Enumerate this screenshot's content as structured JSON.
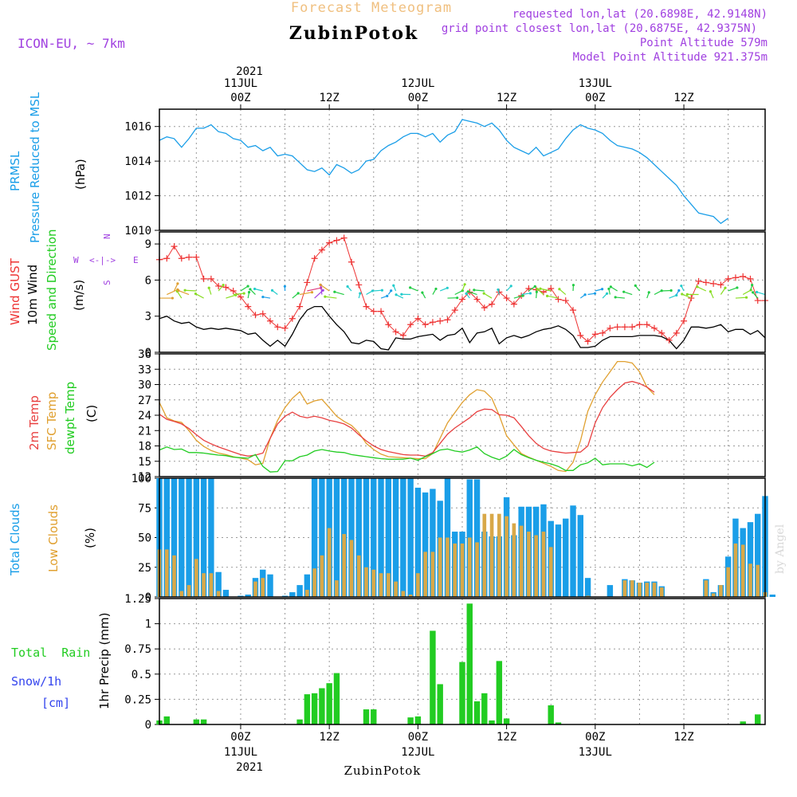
{
  "header": {
    "subtitle": "Forecast Meteogram",
    "title": "ZubinPotok",
    "model": "ICON-EU, ~ 7km",
    "requested": "requested lon,lat (20.6898E, 42.9148N)",
    "closest": "grid point closest lon,lat (20.6875E, 42.9375N)",
    "point_alt": "Point Altitude 579m",
    "model_alt": "Model Point Altitude 921.375m"
  },
  "footer": {
    "station": "ZubinPotok",
    "watermark": "by Angel"
  },
  "time_axis": {
    "top_year": "2021",
    "ticks": [
      {
        "h": 0,
        "label": "00Z",
        "date": "11JUL"
      },
      {
        "h": 12,
        "label": "12Z",
        "date": ""
      },
      {
        "h": 24,
        "label": "00Z",
        "date": "12JUL"
      },
      {
        "h": 36,
        "label": "12Z",
        "date": ""
      },
      {
        "h": 48,
        "label": "00Z",
        "date": "13JUL"
      },
      {
        "h": 60,
        "label": "12Z",
        "date": ""
      }
    ],
    "bottom_year": "2021"
  },
  "colors": {
    "pressure": "#1a9ee8",
    "gust": "#ee3333",
    "wind": "#000000",
    "t2m": "#e84040",
    "sfc": "#e0a030",
    "dew": "#22cc22",
    "total_cloud": "#1a9ee8",
    "low_cloud": "#d8a848",
    "rain": "#22cc22",
    "snow": "#3344ee",
    "header_purple": "#a040e0",
    "header_orange": "#f0c080"
  },
  "chart_data": [
    {
      "type": "line",
      "title": "PRMSL Pressure Reduced to MSL",
      "ylabel_1": "PRMSL",
      "ylabel_2": "Pressure Reduced to MSL",
      "unit": "(hPa)",
      "ylim": [
        1010,
        1017
      ],
      "yticks": [
        1010,
        1012,
        1014,
        1016
      ],
      "series": [
        {
          "name": "PRMSL",
          "start_hour": -11,
          "values": [
            1015.2,
            1015.4,
            1015.3,
            1014.8,
            1015.3,
            1015.9,
            1015.9,
            1016.1,
            1015.7,
            1015.6,
            1015.3,
            1015.2,
            1014.8,
            1014.9,
            1014.6,
            1014.8,
            1014.3,
            1014.4,
            1014.3,
            1013.9,
            1013.5,
            1013.4,
            1013.6,
            1013.2,
            1013.8,
            1013.6,
            1013.3,
            1013.5,
            1014.0,
            1014.1,
            1014.6,
            1014.9,
            1015.1,
            1015.4,
            1015.6,
            1015.6,
            1015.4,
            1015.6,
            1015.1,
            1015.5,
            1015.7,
            1016.4,
            1016.3,
            1016.2,
            1016.0,
            1016.2,
            1015.8,
            1015.2,
            1014.8,
            1014.6,
            1014.4,
            1014.8,
            1014.3,
            1014.5,
            1014.7,
            1015.3,
            1015.8,
            1016.1,
            1015.9,
            1015.8,
            1015.6,
            1015.2,
            1014.9,
            1014.8,
            1014.7,
            1014.5,
            1014.2,
            1013.8,
            1013.4,
            1013.0,
            1012.6,
            1012.0,
            1011.5,
            1011.0,
            1010.9,
            1010.8,
            1010.4,
            1010.7
          ]
        }
      ]
    },
    {
      "type": "line",
      "title": "Wind GUST / 10m Wind Speed and Direction",
      "ylabel_gust": "Wind GUST",
      "ylabel_wind": "10m Wind",
      "ylabel_dir": "Speed and Direction",
      "unit": "(m/s)",
      "compass": {
        "n": "N",
        "s": "S",
        "w": "W",
        "e": "E",
        "arrow": "<-|->"
      },
      "ylim": [
        0,
        10
      ],
      "yticks": [
        0,
        3,
        6,
        9
      ],
      "series": [
        {
          "name": "Wind GUST",
          "start_hour": -11,
          "values": [
            7.7,
            7.8,
            8.8,
            7.8,
            7.9,
            7.9,
            6.1,
            6.1,
            5.5,
            5.4,
            5.1,
            4.6,
            3.8,
            3.1,
            3.2,
            2.6,
            2.1,
            2.0,
            2.8,
            3.8,
            5.8,
            7.8,
            8.5,
            9.1,
            9.3,
            9.5,
            7.5,
            5.6,
            3.8,
            3.4,
            3.4,
            2.3,
            1.7,
            1.4,
            2.3,
            2.8,
            2.3,
            2.5,
            2.6,
            2.7,
            3.5,
            4.4,
            5.0,
            4.4,
            3.7,
            4.0,
            5.0,
            4.5,
            4.0,
            4.7,
            5.3,
            5.2,
            5.0,
            5.3,
            4.4,
            4.3,
            3.5,
            1.4,
            0.9,
            1.5,
            1.6,
            2.0,
            2.1,
            2.1,
            2.1,
            2.3,
            2.3,
            2.0,
            1.6,
            1.0,
            1.6,
            2.6,
            4.5,
            5.9,
            5.8,
            5.7,
            5.6,
            6.1,
            6.2,
            6.3,
            6.1,
            4.3,
            4.3
          ]
        },
        {
          "name": "10m Wind",
          "start_hour": -11,
          "values": [
            2.8,
            3.0,
            2.6,
            2.4,
            2.5,
            2.1,
            1.9,
            2.0,
            1.9,
            2.0,
            1.9,
            1.8,
            1.5,
            1.6,
            1.0,
            0.5,
            1.0,
            0.5,
            1.5,
            2.7,
            3.5,
            3.8,
            3.8,
            3.0,
            2.3,
            1.7,
            0.8,
            0.7,
            1.0,
            0.9,
            0.3,
            0.2,
            1.2,
            1.1,
            1.1,
            1.3,
            1.4,
            1.5,
            1.0,
            1.4,
            1.5,
            2.0,
            0.8,
            1.6,
            1.7,
            2.0,
            0.7,
            1.2,
            1.4,
            1.2,
            1.4,
            1.7,
            1.9,
            2.0,
            2.2,
            1.9,
            1.4,
            0.4,
            0.4,
            0.5,
            1.0,
            1.3,
            1.3,
            1.3,
            1.3,
            1.4,
            1.4,
            1.4,
            1.3,
            1.0,
            0.3,
            1.0,
            2.1,
            2.1,
            2.0,
            2.1,
            2.3,
            1.7,
            1.9,
            1.9,
            1.5,
            1.8,
            1.2
          ]
        }
      ]
    },
    {
      "type": "line",
      "title": "Temperatures",
      "ylabel_t2m": "2m Temp",
      "ylabel_sfc": "SFC Temp",
      "ylabel_dew": "dewpt Temp",
      "unit": "(C)",
      "ylim": [
        12,
        36
      ],
      "yticks": [
        12,
        15,
        18,
        21,
        24,
        27,
        30,
        33,
        36
      ],
      "series": [
        {
          "name": "2m Temp",
          "start_hour": -11,
          "values": [
            24.2,
            23.2,
            22.8,
            22.3,
            21.4,
            20.2,
            19.1,
            18.4,
            17.8,
            17.3,
            16.8,
            16.3,
            16.0,
            16.2,
            16.6,
            19.5,
            22.3,
            23.8,
            24.6,
            23.8,
            23.5,
            23.8,
            23.5,
            23.0,
            22.7,
            22.3,
            21.5,
            20.2,
            19.0,
            18.0,
            17.3,
            16.9,
            16.6,
            16.3,
            16.2,
            16.2,
            16.0,
            16.7,
            18.5,
            20.3,
            21.5,
            22.5,
            23.5,
            24.7,
            25.2,
            25.1,
            24.1,
            24.0,
            23.5,
            21.8,
            20.0,
            18.5,
            17.5,
            17.0,
            16.8,
            16.6,
            16.7,
            16.8,
            18.0,
            22.5,
            25.5,
            27.5,
            29.0,
            30.3,
            30.6,
            30.2,
            29.5,
            28.5
          ]
        },
        {
          "name": "SFC Temp",
          "start_hour": -11,
          "values": [
            26.5,
            23.5,
            22.9,
            22.6,
            21.0,
            19.1,
            17.9,
            17.1,
            16.6,
            16.3,
            15.9,
            15.6,
            15.3,
            14.3,
            14.6,
            19.5,
            23.0,
            25.5,
            27.3,
            28.6,
            26.2,
            26.8,
            27.1,
            25.5,
            23.8,
            22.8,
            22.0,
            20.6,
            18.5,
            17.3,
            16.4,
            15.9,
            15.8,
            15.7,
            15.6,
            15.5,
            15.5,
            16.5,
            19.5,
            22.5,
            24.5,
            26.5,
            28.0,
            29.0,
            28.7,
            27.3,
            24.0,
            20.0,
            18.2,
            16.5,
            15.8,
            15.2,
            14.6,
            14.0,
            13.2,
            13.0,
            14.8,
            19.0,
            24.8,
            28.0,
            30.5,
            32.5,
            34.5,
            34.5,
            34.2,
            32.5,
            29.5,
            28.0
          ]
        },
        {
          "name": "dewpt Temp",
          "start_hour": -11,
          "values": [
            17.2,
            17.8,
            17.3,
            17.4,
            16.7,
            16.7,
            16.6,
            16.4,
            16.2,
            16.1,
            15.8,
            15.7,
            15.6,
            16.3,
            14.0,
            12.9,
            13.0,
            15.1,
            15.1,
            15.9,
            16.2,
            17.0,
            17.3,
            17.0,
            16.8,
            16.7,
            16.3,
            16.1,
            15.9,
            15.7,
            15.5,
            15.4,
            15.4,
            15.4,
            15.6,
            15.2,
            15.9,
            16.5,
            17.2,
            17.4,
            17.0,
            16.8,
            17.2,
            17.8,
            16.5,
            15.8,
            15.3,
            16.0,
            17.3,
            16.3,
            15.7,
            15.2,
            14.8,
            14.5,
            14.0,
            13.2,
            13.2,
            14.3,
            14.7,
            15.6,
            14.3,
            14.5,
            14.5,
            14.5,
            14.1,
            14.5,
            13.8,
            14.8
          ]
        }
      ]
    },
    {
      "type": "bar",
      "title": "Clouds",
      "ylabel_total": "Total Clouds",
      "ylabel_low": "Low Clouds",
      "unit": "(%)",
      "ylim": [
        0,
        100
      ],
      "yticks": [
        0,
        25,
        50,
        75,
        100
      ],
      "series": [
        {
          "name": "Total Clouds",
          "start_hour": -11,
          "values": [
            100,
            100,
            100,
            100,
            100,
            100,
            100,
            100,
            21,
            6,
            0,
            1,
            2,
            16,
            23,
            19,
            0,
            1,
            4,
            10,
            19,
            100,
            100,
            100,
            100,
            100,
            100,
            100,
            100,
            100,
            100,
            100,
            100,
            100,
            100,
            92,
            88,
            91,
            81,
            100,
            55,
            55,
            99,
            99,
            55,
            51,
            51,
            84,
            52,
            76,
            76,
            76,
            78,
            64,
            61,
            66,
            77,
            69,
            16,
            0,
            0,
            10,
            0,
            15,
            14,
            12,
            13,
            13,
            9,
            0,
            0,
            0,
            0,
            0,
            15,
            4,
            10,
            34,
            66,
            58,
            63,
            70,
            85,
            2
          ]
        },
        {
          "name": "Low Clouds",
          "start_hour": -11,
          "values": [
            40,
            40,
            35,
            5,
            10,
            32,
            20,
            20,
            5,
            0,
            0,
            0,
            0,
            13,
            16,
            0,
            0,
            0,
            0,
            0,
            6,
            24,
            35,
            58,
            14,
            53,
            48,
            35,
            25,
            23,
            20,
            20,
            13,
            5,
            2,
            20,
            38,
            38,
            50,
            50,
            45,
            45,
            50,
            46,
            70,
            70,
            70,
            68,
            62,
            60,
            55,
            52,
            55,
            42,
            0,
            0,
            0,
            0,
            1,
            0,
            0,
            0,
            0,
            14,
            14,
            12,
            12,
            12,
            8,
            0,
            0,
            0,
            0,
            0,
            14,
            3,
            10,
            25,
            45,
            44,
            28,
            27,
            4,
            0
          ]
        }
      ]
    },
    {
      "type": "bar",
      "title": "Precipitation",
      "ylabel_rain": "Total  Rain",
      "ylabel_snow": "Snow/1h",
      "ylabel_snow_unit": "[cm]",
      "unit": "1hr Precip (mm)",
      "ylim": [
        0,
        1.25
      ],
      "yticks": [
        0,
        0.25,
        0.5,
        0.75,
        1,
        1.25
      ],
      "ytick_labels": [
        "0",
        "0.25",
        "0.5",
        "0.75",
        "1",
        "1.25"
      ],
      "series": [
        {
          "name": "Total Rain",
          "start_hour": -11,
          "values": [
            0.04,
            0.08,
            0,
            0,
            0,
            0.05,
            0.05,
            0,
            0,
            0,
            0,
            0,
            0,
            0,
            0,
            0,
            0,
            0,
            0,
            0.05,
            0.3,
            0.31,
            0.36,
            0.41,
            0.51,
            0,
            0,
            0,
            0.15,
            0.15,
            0,
            0,
            0,
            0,
            0.07,
            0.08,
            0,
            0.93,
            0.4,
            0,
            0,
            0.62,
            1.2,
            0.23,
            0.31,
            0.04,
            0.63,
            0.06,
            0,
            0,
            0,
            0,
            0,
            0.19,
            0.02,
            0,
            0,
            0,
            0,
            0,
            0,
            0,
            0,
            0,
            0,
            0,
            0,
            0,
            0,
            0,
            0,
            0,
            0,
            0,
            0,
            0,
            0,
            0,
            0,
            0.03,
            0,
            0.1,
            0
          ]
        },
        {
          "name": "Snow/1h",
          "start_hour": -11,
          "values": [
            0
          ]
        }
      ]
    }
  ]
}
